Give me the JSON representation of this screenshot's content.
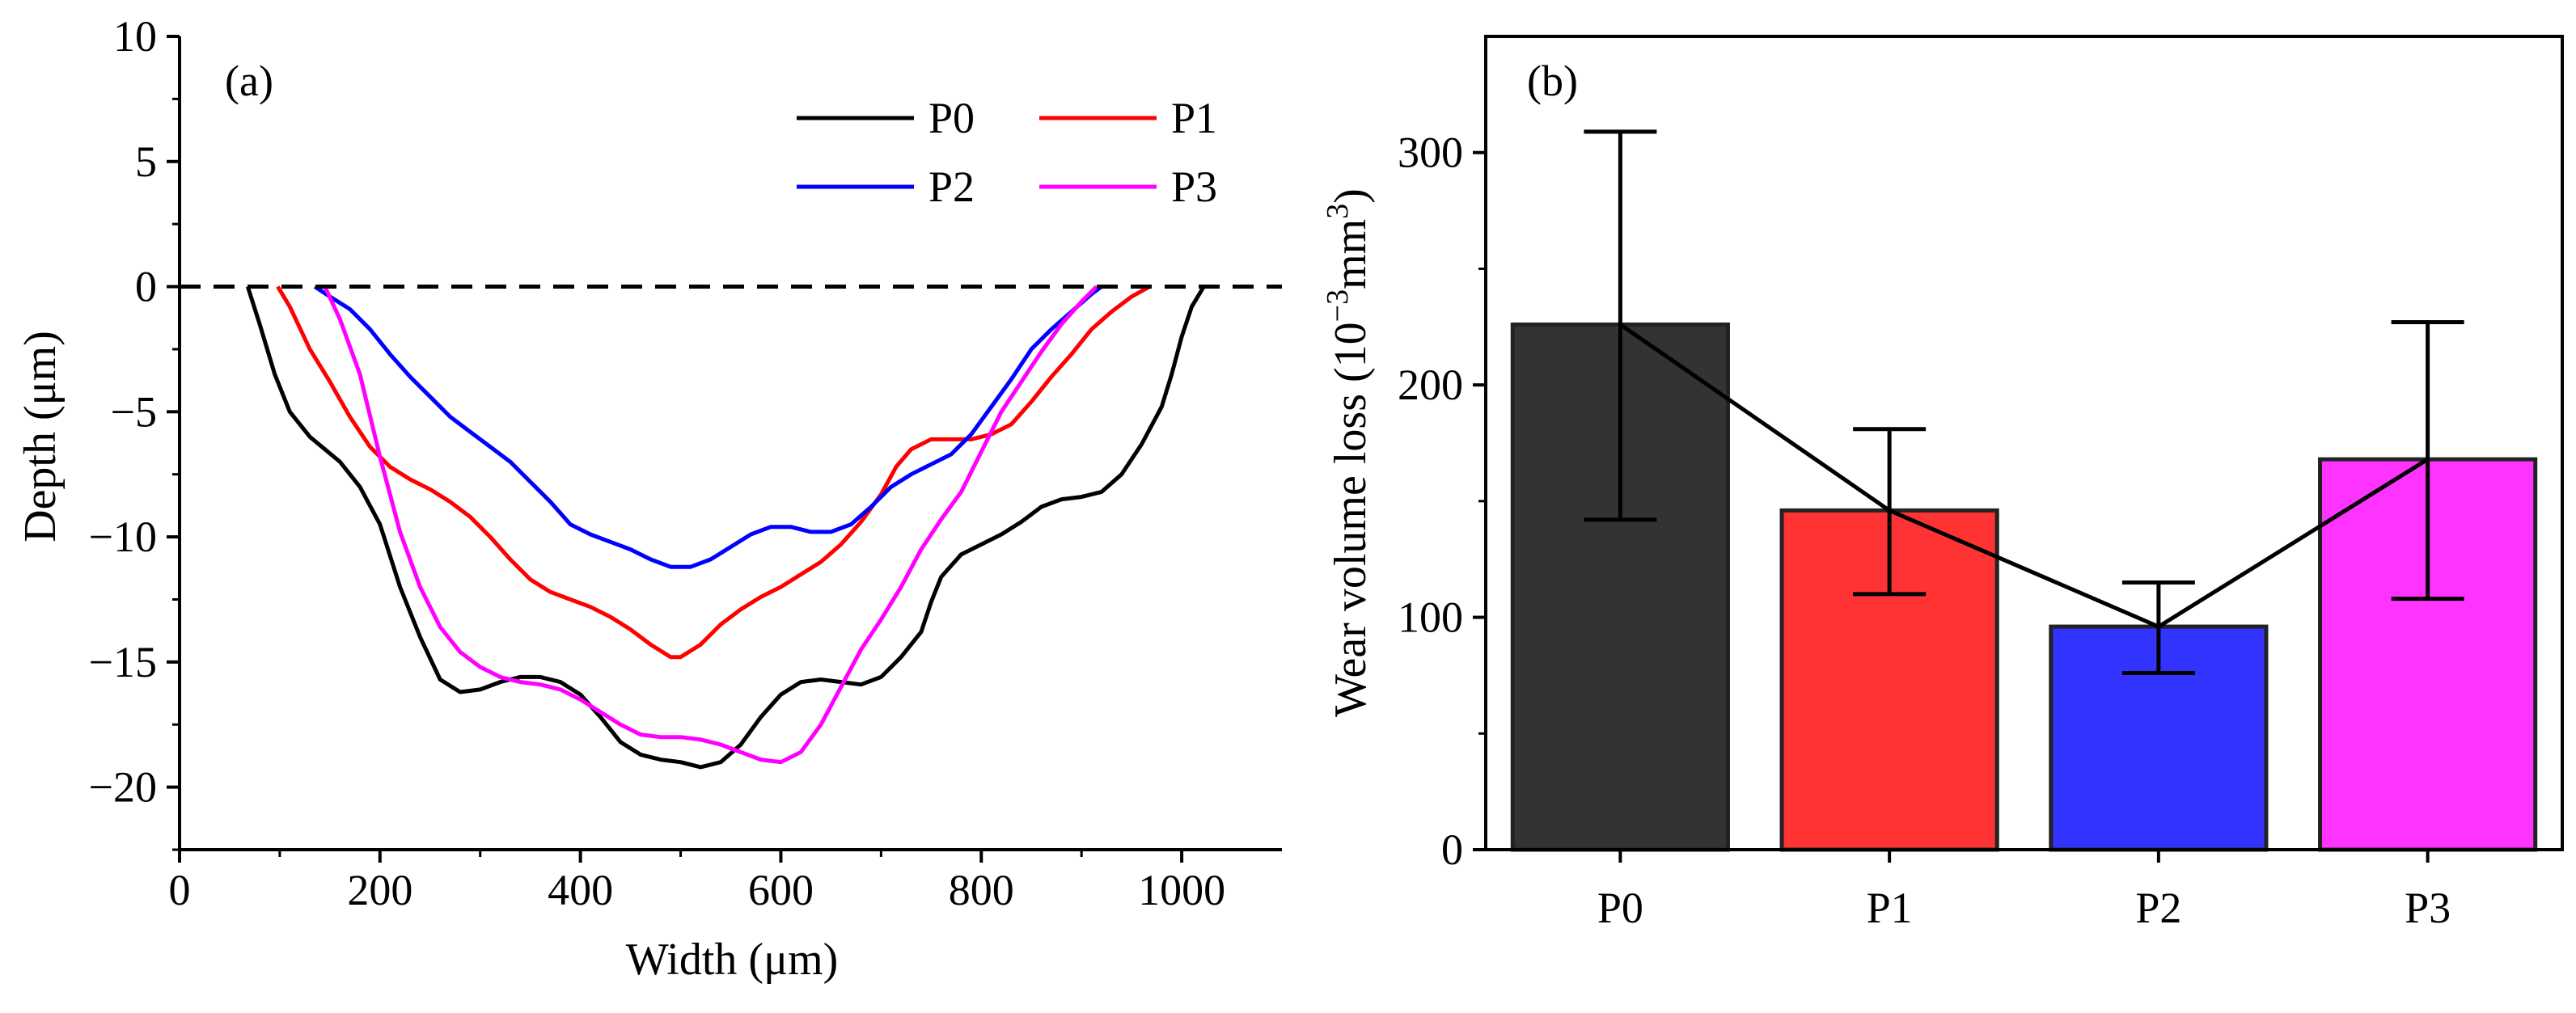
{
  "chart_data": [
    {
      "panel": "(a)",
      "type": "line",
      "xlabel": "Width (μm)",
      "ylabel": "Depth (μm)",
      "xlim": [
        0,
        1100
      ],
      "ylim": [
        -22.5,
        10
      ],
      "xticks": [
        0,
        200,
        400,
        600,
        800,
        1000
      ],
      "yticks": [
        10,
        5,
        0,
        -5,
        -10,
        -15,
        -20
      ],
      "xtick_labels": [
        "0",
        "200",
        "400",
        "600",
        "800",
        "1000"
      ],
      "ytick_labels": [
        "10",
        "5",
        "0",
        "−5",
        "−10",
        "−15",
        "−20"
      ],
      "reference_line": {
        "y": 0,
        "style": "dashed"
      },
      "legend": [
        "P0",
        "P1",
        "P2",
        "P3"
      ],
      "series": [
        {
          "name": "P0",
          "color": "#000000",
          "points": [
            [
              68,
              0
            ],
            [
              80,
              -1.5
            ],
            [
              95,
              -3.5
            ],
            [
              110,
              -5
            ],
            [
              130,
              -6
            ],
            [
              160,
              -7
            ],
            [
              180,
              -8
            ],
            [
              200,
              -9.5
            ],
            [
              220,
              -12
            ],
            [
              240,
              -14
            ],
            [
              260,
              -15.7
            ],
            [
              280,
              -16.2
            ],
            [
              300,
              -16.1
            ],
            [
              320,
              -15.8
            ],
            [
              340,
              -15.6
            ],
            [
              360,
              -15.6
            ],
            [
              380,
              -15.8
            ],
            [
              400,
              -16.3
            ],
            [
              420,
              -17.2
            ],
            [
              440,
              -18.2
            ],
            [
              460,
              -18.7
            ],
            [
              480,
              -18.9
            ],
            [
              500,
              -19.0
            ],
            [
              520,
              -19.2
            ],
            [
              540,
              -19.0
            ],
            [
              560,
              -18.3
            ],
            [
              580,
              -17.2
            ],
            [
              600,
              -16.3
            ],
            [
              620,
              -15.8
            ],
            [
              640,
              -15.7
            ],
            [
              660,
              -15.8
            ],
            [
              680,
              -15.9
            ],
            [
              700,
              -15.6
            ],
            [
              720,
              -14.8
            ],
            [
              740,
              -13.8
            ],
            [
              750,
              -12.6
            ],
            [
              760,
              -11.6
            ],
            [
              780,
              -10.7
            ],
            [
              800,
              -10.3
            ],
            [
              820,
              -9.9
            ],
            [
              840,
              -9.4
            ],
            [
              860,
              -8.8
            ],
            [
              880,
              -8.5
            ],
            [
              900,
              -8.4
            ],
            [
              920,
              -8.2
            ],
            [
              940,
              -7.5
            ],
            [
              960,
              -6.3
            ],
            [
              980,
              -4.8
            ],
            [
              990,
              -3.5
            ],
            [
              1000,
              -2.0
            ],
            [
              1010,
              -0.8
            ],
            [
              1022,
              0
            ]
          ]
        },
        {
          "name": "P1",
          "color": "#ff0000",
          "points": [
            [
              98,
              0
            ],
            [
              110,
              -0.8
            ],
            [
              130,
              -2.5
            ],
            [
              150,
              -3.8
            ],
            [
              170,
              -5.2
            ],
            [
              190,
              -6.4
            ],
            [
              210,
              -7.2
            ],
            [
              230,
              -7.7
            ],
            [
              250,
              -8.1
            ],
            [
              270,
              -8.6
            ],
            [
              290,
              -9.2
            ],
            [
              310,
              -10
            ],
            [
              330,
              -10.9
            ],
            [
              350,
              -11.7
            ],
            [
              370,
              -12.2
            ],
            [
              390,
              -12.5
            ],
            [
              410,
              -12.8
            ],
            [
              430,
              -13.2
            ],
            [
              450,
              -13.7
            ],
            [
              470,
              -14.3
            ],
            [
              490,
              -14.8
            ],
            [
              500,
              -14.8
            ],
            [
              520,
              -14.3
            ],
            [
              540,
              -13.5
            ],
            [
              560,
              -12.9
            ],
            [
              580,
              -12.4
            ],
            [
              600,
              -12
            ],
            [
              620,
              -11.5
            ],
            [
              640,
              -11
            ],
            [
              660,
              -10.3
            ],
            [
              680,
              -9.4
            ],
            [
              700,
              -8.3
            ],
            [
              715,
              -7.2
            ],
            [
              730,
              -6.5
            ],
            [
              750,
              -6.1
            ],
            [
              770,
              -6.1
            ],
            [
              790,
              -6.1
            ],
            [
              810,
              -5.9
            ],
            [
              830,
              -5.5
            ],
            [
              850,
              -4.6
            ],
            [
              870,
              -3.6
            ],
            [
              890,
              -2.7
            ],
            [
              910,
              -1.7
            ],
            [
              930,
              -1.0
            ],
            [
              950,
              -0.4
            ],
            [
              968,
              0
            ]
          ]
        },
        {
          "name": "P2",
          "color": "#0000ff",
          "points": [
            [
              135,
              0
            ],
            [
              150,
              -0.4
            ],
            [
              170,
              -0.9
            ],
            [
              190,
              -1.7
            ],
            [
              210,
              -2.7
            ],
            [
              230,
              -3.6
            ],
            [
              250,
              -4.4
            ],
            [
              270,
              -5.2
            ],
            [
              290,
              -5.8
            ],
            [
              310,
              -6.4
            ],
            [
              330,
              -7.0
            ],
            [
              350,
              -7.8
            ],
            [
              370,
              -8.6
            ],
            [
              390,
              -9.5
            ],
            [
              410,
              -9.9
            ],
            [
              430,
              -10.2
            ],
            [
              450,
              -10.5
            ],
            [
              470,
              -10.9
            ],
            [
              490,
              -11.2
            ],
            [
              510,
              -11.2
            ],
            [
              530,
              -10.9
            ],
            [
              550,
              -10.4
            ],
            [
              570,
              -9.9
            ],
            [
              590,
              -9.6
            ],
            [
              610,
              -9.6
            ],
            [
              630,
              -9.8
            ],
            [
              650,
              -9.8
            ],
            [
              670,
              -9.5
            ],
            [
              690,
              -8.8
            ],
            [
              710,
              -8.0
            ],
            [
              730,
              -7.5
            ],
            [
              750,
              -7.1
            ],
            [
              770,
              -6.7
            ],
            [
              790,
              -5.9
            ],
            [
              810,
              -4.8
            ],
            [
              830,
              -3.7
            ],
            [
              850,
              -2.5
            ],
            [
              870,
              -1.7
            ],
            [
              890,
              -1.0
            ],
            [
              910,
              -0.3
            ],
            [
              920,
              0
            ]
          ]
        },
        {
          "name": "P3",
          "color": "#ff00ff",
          "points": [
            [
              145,
              0
            ],
            [
              160,
              -1.3
            ],
            [
              180,
              -3.5
            ],
            [
              200,
              -6.8
            ],
            [
              220,
              -9.8
            ],
            [
              240,
              -12.0
            ],
            [
              260,
              -13.6
            ],
            [
              280,
              -14.6
            ],
            [
              300,
              -15.2
            ],
            [
              320,
              -15.6
            ],
            [
              340,
              -15.8
            ],
            [
              360,
              -15.9
            ],
            [
              380,
              -16.1
            ],
            [
              400,
              -16.5
            ],
            [
              420,
              -17.0
            ],
            [
              440,
              -17.5
            ],
            [
              460,
              -17.9
            ],
            [
              480,
              -18.0
            ],
            [
              500,
              -18.0
            ],
            [
              520,
              -18.1
            ],
            [
              540,
              -18.3
            ],
            [
              560,
              -18.6
            ],
            [
              580,
              -18.9
            ],
            [
              600,
              -19.0
            ],
            [
              620,
              -18.6
            ],
            [
              640,
              -17.5
            ],
            [
              660,
              -16.0
            ],
            [
              680,
              -14.5
            ],
            [
              700,
              -13.3
            ],
            [
              720,
              -12.0
            ],
            [
              740,
              -10.5
            ],
            [
              760,
              -9.3
            ],
            [
              780,
              -8.2
            ],
            [
              800,
              -6.6
            ],
            [
              820,
              -5.0
            ],
            [
              840,
              -3.8
            ],
            [
              860,
              -2.6
            ],
            [
              880,
              -1.5
            ],
            [
              900,
              -0.6
            ],
            [
              915,
              0
            ]
          ]
        }
      ]
    },
    {
      "panel": "(b)",
      "type": "bar",
      "ylabel": "Wear volume loss (10",
      "ylabel_sup1": "−3",
      "ylabel_mid": "mm",
      "ylabel_sup2": "3",
      "ylabel_end": ")",
      "ylim": [
        0,
        350
      ],
      "yticks": [
        0,
        100,
        200,
        300
      ],
      "ytick_labels": [
        "0",
        "100",
        "200",
        "300"
      ],
      "categories": [
        "P0",
        "P1",
        "P2",
        "P3"
      ],
      "values": [
        226,
        146,
        96,
        168
      ],
      "error_low": [
        142,
        110,
        76,
        108
      ],
      "error_high": [
        309,
        181,
        115,
        227
      ],
      "colors": [
        "#333333",
        "#ff3333",
        "#3333ff",
        "#ff33ff"
      ],
      "connecting_line": true
    }
  ]
}
